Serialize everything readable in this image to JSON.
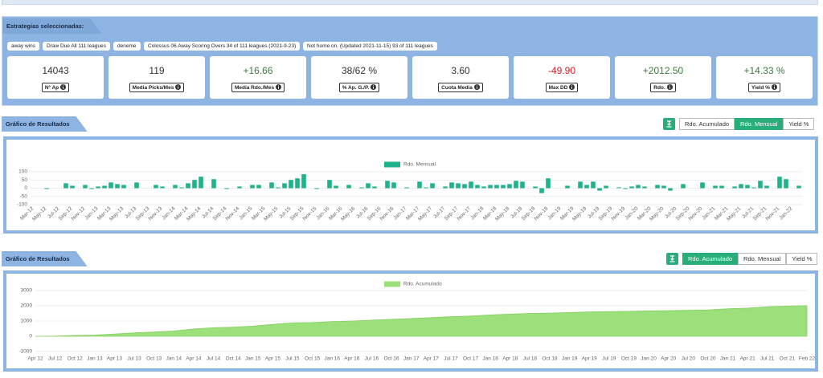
{
  "strategies_panel": {
    "title": "Estrategias seleccionadas:",
    "tags": [
      "away wins",
      "Draw Due All 111 leagues",
      "deneme",
      "Colossus 06 Away Scoring Overs 34 of 111 leagues (2021-9-23)",
      "Not home on. (Updated 2021-11-15) 93 of 111 leagues"
    ],
    "stats": [
      {
        "value": "14043",
        "label": "Nº Ap",
        "color": "#333333"
      },
      {
        "value": "119",
        "label": "Media Picks/Mes",
        "color": "#333333"
      },
      {
        "value": "+16.66",
        "label": "Media Rdo./Mes",
        "color": "#3c7a3c"
      },
      {
        "value": "38/62 %",
        "label": "% Ap. G./P.",
        "color": "#333333"
      },
      {
        "value": "3.60",
        "label": "Cuota Media",
        "color": "#333333"
      },
      {
        "value": "-49.90",
        "label": "Max DD",
        "color": "#d0202a"
      },
      {
        "value": "+2012.50",
        "label": "Rdo.",
        "color": "#3c7a3c"
      },
      {
        "value": "+14.33 %",
        "label": "Yield %",
        "color": "#3c7a3c"
      }
    ]
  },
  "chart_data": [
    {
      "type": "bar",
      "panel_title": "Gráfico de Resultados",
      "buttons": [
        {
          "label": "Rdo. Acumulado",
          "active": false
        },
        {
          "label": "Rdo. Mensual",
          "active": true
        },
        {
          "label": "Yield %",
          "active": false
        }
      ],
      "legend": true,
      "grid": true,
      "ylim": [
        -100,
        100
      ],
      "yticks": [
        -100,
        -50,
        0,
        50,
        100
      ],
      "categories": [
        "Mar-12",
        null,
        "May-12",
        null,
        "Jul-12",
        null,
        "Sep-12",
        null,
        "Nov-12",
        null,
        "Jan-13",
        null,
        "Mar-13",
        null,
        "May-13",
        null,
        "Jul-13",
        null,
        "Sep-13",
        null,
        "Nov-13",
        null,
        "Jan-14",
        null,
        "Mar-14",
        null,
        "May-14",
        null,
        "Jul-14",
        null,
        "Sep-14",
        null,
        "Nov-14",
        null,
        "Jan-15",
        null,
        "Mar-15",
        null,
        "May-15",
        null,
        "Jul-15",
        null,
        "Sep-15",
        null,
        "Nov-15",
        null,
        "Jan-16",
        null,
        "Mar-16",
        null,
        "May-16",
        null,
        "Jul-16",
        null,
        "Sep-16",
        null,
        "Nov-16",
        null,
        "Jan-17",
        null,
        "Mar-17",
        null,
        "May-17",
        null,
        "Jul-17",
        null,
        "Sep-17",
        null,
        "Nov-17",
        null,
        "Jan-18",
        null,
        "Mar-18",
        null,
        "May-18",
        null,
        "Jul-18",
        null,
        "Sep-18",
        null,
        "Nov-18",
        null,
        "Jan-19",
        null,
        "Mar-19",
        null,
        "May-19",
        null,
        "Jul-19",
        null,
        "Sep-19",
        null,
        "Nov-19",
        null,
        "Jan-20",
        null,
        "Mar-20",
        null,
        "May-20",
        null,
        "Jul-20",
        null,
        "Sep-20",
        null,
        "Nov-20",
        null,
        "Jan-21",
        null,
        "Mar-21",
        null,
        "May-21",
        null,
        "Jul-21",
        null,
        "Sep-21",
        null,
        "Nov-21",
        null,
        "Jan-22",
        null
      ],
      "series": [
        {
          "name": "Rdo. Mensual",
          "color": "#1fb38c",
          "values": [
            0,
            0,
            -5,
            0,
            0,
            30,
            15,
            0,
            20,
            -5,
            10,
            15,
            35,
            25,
            20,
            0,
            35,
            0,
            0,
            20,
            10,
            0,
            20,
            5,
            30,
            50,
            70,
            0,
            55,
            0,
            -5,
            0,
            10,
            0,
            20,
            20,
            0,
            35,
            5,
            30,
            50,
            60,
            85,
            0,
            -5,
            0,
            50,
            15,
            0,
            20,
            0,
            5,
            30,
            10,
            0,
            45,
            35,
            0,
            5,
            0,
            40,
            5,
            30,
            0,
            10,
            35,
            30,
            25,
            40,
            20,
            10,
            20,
            20,
            20,
            25,
            45,
            40,
            0,
            10,
            -30,
            60,
            0,
            0,
            15,
            0,
            40,
            20,
            40,
            -15,
            15,
            0,
            5,
            -5,
            10,
            20,
            10,
            0,
            20,
            15,
            -15,
            0,
            25,
            0,
            0,
            35,
            0,
            15,
            15,
            0,
            10,
            25,
            20,
            5,
            45,
            15,
            0,
            70,
            55,
            0,
            15
          ]
        }
      ]
    },
    {
      "type": "area",
      "panel_title": "Gráfico de Resultados",
      "buttons": [
        {
          "label": "Rdo. Acumulado",
          "active": true
        },
        {
          "label": "Rdo. Mensual",
          "active": false
        },
        {
          "label": "Yield %",
          "active": false
        }
      ],
      "legend": true,
      "grid": true,
      "ylim": [
        -1000,
        3000
      ],
      "yticks": [
        -1000,
        0,
        1000,
        2000,
        3000
      ],
      "categories": [
        "Apr 12",
        "Jul 12",
        "Oct 12",
        "Jan 13",
        "Apr 13",
        "Jul 13",
        "Oct 13",
        "Jan 14",
        "Apr 14",
        "Jul 14",
        "Oct 14",
        "Jan 15",
        "Apr 15",
        "Jul 15",
        "Oct 15",
        "Jan 16",
        "Apr 16",
        "Jul 16",
        "Oct 16",
        "Jan 17",
        "Apr 17",
        "Jul 17",
        "Oct 17",
        "Jan 18",
        "Apr 18",
        "Jul 18",
        "Oct 18",
        "Jan 19",
        "Apr 19",
        "Jul 19",
        "Oct 19",
        "Jan 20",
        "Apr 20",
        "Jul 20",
        "Oct 20",
        "Jan 21",
        "Apr 21",
        "Jul 21",
        "Oct 21",
        "Feb 22"
      ],
      "series": [
        {
          "name": "Rdo. Acumulado",
          "color": "#9be07a",
          "values": [
            0,
            10,
            50,
            80,
            150,
            220,
            280,
            350,
            480,
            560,
            600,
            660,
            780,
            880,
            900,
            960,
            1000,
            1060,
            1110,
            1160,
            1220,
            1280,
            1330,
            1400,
            1450,
            1500,
            1520,
            1560,
            1600,
            1620,
            1640,
            1660,
            1680,
            1700,
            1730,
            1800,
            1850,
            1930,
            1980,
            2012.5
          ]
        }
      ]
    }
  ]
}
